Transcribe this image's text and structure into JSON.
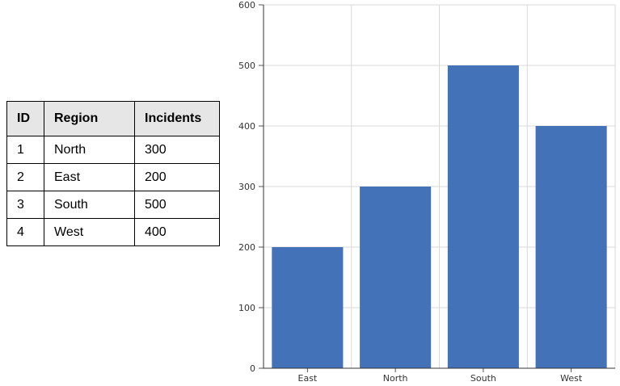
{
  "table": {
    "headers": [
      "ID",
      "Region",
      "Incidents"
    ],
    "rows": [
      [
        "1",
        "North",
        "300"
      ],
      [
        "2",
        "East",
        "200"
      ],
      [
        "3",
        "South",
        "500"
      ],
      [
        "4",
        "West",
        "400"
      ]
    ]
  },
  "chart_data": {
    "type": "bar",
    "categories": [
      "East",
      "North",
      "South",
      "West"
    ],
    "values": [
      200,
      300,
      500,
      400
    ],
    "title": "",
    "xlabel": "",
    "ylabel": "",
    "ylim": [
      0,
      600
    ],
    "yticks": [
      0,
      100,
      200,
      300,
      400,
      500,
      600
    ],
    "grid": true,
    "bar_color": "#4472b9"
  }
}
